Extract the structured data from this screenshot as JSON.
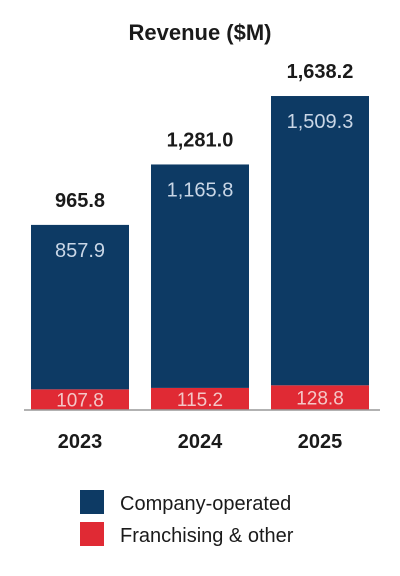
{
  "chart_data": {
    "type": "bar",
    "stacked": true,
    "title": "Revenue ($M)",
    "categories": [
      "2023",
      "2024",
      "2025"
    ],
    "series": [
      {
        "name": "Franchising & other",
        "values": [
          107.8,
          115.2,
          128.8
        ],
        "labels": [
          "107.8",
          "115.2",
          "128.8"
        ]
      },
      {
        "name": "Company-operated",
        "values": [
          857.9,
          1165.8,
          1509.3
        ],
        "labels": [
          "857.9",
          "1,165.8",
          "1,509.3"
        ]
      }
    ],
    "totals": [
      965.8,
      1281.0,
      1638.2
    ],
    "total_labels": [
      "965.8",
      "1,281.0",
      "1,638.2"
    ],
    "ylim": [
      0,
      1638.2
    ],
    "grid": false,
    "legend_position": "bottom",
    "legend": [
      "Company-operated",
      "Franchising & other"
    ]
  },
  "colors": {
    "company_operated": "#0d3a64",
    "franchising": "#e02a34",
    "axis": "#999999"
  }
}
